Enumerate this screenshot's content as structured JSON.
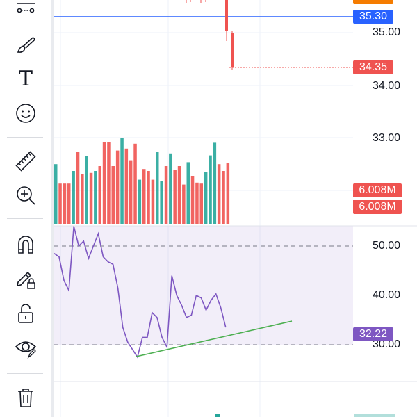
{
  "toolbar": {
    "tools": [
      {
        "icon": "trend-lines-icon"
      },
      {
        "icon": "brush-icon"
      },
      {
        "icon": "text-icon",
        "glyph": "T"
      },
      {
        "icon": "emoji-icon"
      },
      {
        "icon": "ruler-icon"
      },
      {
        "icon": "zoom-in-icon"
      },
      {
        "icon": "magnet-icon"
      },
      {
        "icon": "lock-drawing-icon"
      },
      {
        "icon": "unlock-icon"
      },
      {
        "icon": "eye-icon"
      },
      {
        "icon": "trash-icon"
      }
    ]
  },
  "price_axis": {
    "labels": [
      "35.00",
      "34.00",
      "33.00"
    ],
    "current_price": "35.30",
    "last_price": "34.35"
  },
  "volume": {
    "labels": [
      "6.008M",
      "6.008M"
    ]
  },
  "rsi": {
    "labels": [
      "50.00",
      "40.00",
      "30.00"
    ],
    "current": "32.22",
    "levels": [
      50,
      30
    ],
    "values": [
      48.5,
      47.8,
      43,
      41,
      54,
      50,
      51,
      47.5,
      50,
      52.5,
      47.8,
      46.8,
      46.3,
      41.5,
      33.5,
      30.5,
      29,
      27.5,
      31.5,
      31.5,
      36.5,
      35.5,
      31.5,
      29.5,
      44,
      40,
      38,
      35.5,
      36,
      40,
      39.5,
      37,
      39,
      40.3,
      37.5,
      33.5
    ]
  },
  "volume_bars": {
    "colors": [
      "g",
      "r",
      "r",
      "r",
      "g",
      "r",
      "r",
      "g",
      "r",
      "g",
      "r",
      "r",
      "r",
      "r",
      "r",
      "g",
      "r",
      "r",
      "r",
      "g",
      "r",
      "r",
      "r",
      "g",
      "g",
      "r",
      "g",
      "r",
      "r",
      "r",
      "g",
      "r",
      "r",
      "r",
      "g",
      "g",
      "g",
      "r",
      "r",
      "r"
    ],
    "values": [
      0.62,
      0.42,
      0.42,
      0.42,
      0.55,
      0.75,
      0.52,
      0.7,
      0.53,
      0.55,
      0.6,
      0.85,
      0.85,
      0.6,
      0.76,
      0.89,
      0.78,
      0.66,
      0.83,
      0.46,
      0.57,
      0.55,
      0.46,
      0.75,
      0.45,
      0.6,
      0.73,
      0.56,
      0.6,
      0.41,
      0.64,
      0.5,
      0.43,
      0.42,
      0.54,
      0.71,
      0.84,
      0.62,
      0.55,
      0.63
    ]
  },
  "colors": {
    "up": "#26a69a",
    "down": "#ef5350",
    "current_price_line": "#2962ff",
    "rsi_line": "#7e57c2",
    "trend_line": "#4caf50",
    "rsi_band": "#7e57c2"
  }
}
